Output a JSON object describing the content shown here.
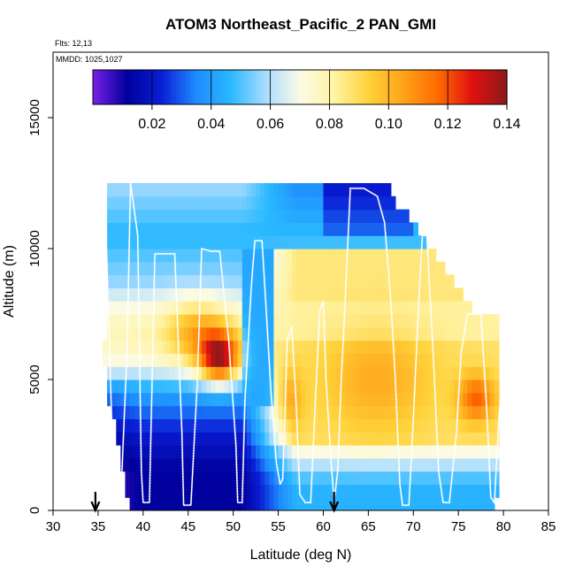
{
  "chart_data": {
    "type": "heatmap",
    "title": "ATOM3 Northeast_Pacific_2 PAN_GMI",
    "flights_text": "Flts: 12,13",
    "mmdd_text": "MMDD: 1025,1027",
    "xlabel": "Latitude (deg N)",
    "ylabel": "Altitude (m)",
    "xlim": [
      30,
      85
    ],
    "ylim": [
      0,
      17500
    ],
    "x_ticks": [
      30,
      35,
      40,
      45,
      50,
      55,
      60,
      65,
      70,
      75,
      80,
      85
    ],
    "y_ticks": [
      0,
      5000,
      10000,
      15000
    ],
    "colorbar": {
      "min": 0.0,
      "max": 0.14,
      "ticks": [
        0.02,
        0.04,
        0.06,
        0.08,
        0.1,
        0.12,
        0.14
      ],
      "tick_labels": [
        "0.02",
        "0.04",
        "0.06",
        "0.08",
        "0.10",
        "0.12",
        "0.14"
      ],
      "colors": [
        "#7a1fe8",
        "#00009c",
        "#0a1fd6",
        "#1f8cff",
        "#29b8ff",
        "#a8dcff",
        "#fbfbe6",
        "#fff3a3",
        "#ffd23a",
        "#ffa31a",
        "#ff6a00",
        "#e01010",
        "#8b1a1a"
      ]
    },
    "arrows_latitude": [
      34.7,
      61.2
    ],
    "grid": {
      "lat_start": 35,
      "lat_step": 0.5,
      "alt_step": 500,
      "top": [
        5500,
        6500,
        12500,
        12500,
        12500,
        12500,
        12500,
        12500,
        12500,
        12500,
        12500,
        12500,
        12500,
        12500,
        12500,
        12500,
        12500,
        12500,
        12500,
        12500,
        12500,
        12500,
        12500,
        12500,
        12500,
        12500,
        12500,
        12500,
        12500,
        12500,
        12500,
        12500,
        12500,
        12500,
        12500,
        12500,
        12500,
        12500,
        12500,
        12500,
        12500,
        12500,
        12500,
        12500,
        12500,
        12500,
        12500,
        12500,
        12500,
        12500,
        12500,
        12500,
        12500,
        12500,
        12500,
        12500,
        12500,
        12500,
        12500,
        12500,
        12500,
        12500,
        12500,
        12500,
        12500,
        12000,
        11500,
        11500,
        11500,
        11000,
        11000,
        10500,
        10500,
        10000,
        10000,
        9500,
        9500,
        9000,
        9000,
        8500,
        8500,
        8000,
        8000,
        7500,
        7500,
        7500,
        7500,
        7500,
        7500
      ],
      "bottom": [
        6000,
        5500,
        4000,
        3500,
        2500,
        1500,
        500,
        0,
        0,
        0,
        0,
        0,
        0,
        0,
        0,
        0,
        0,
        0,
        0,
        0,
        0,
        0,
        0,
        0,
        0,
        0,
        0,
        0,
        0,
        0,
        0,
        0,
        0,
        0,
        0,
        0,
        0,
        0,
        0,
        0,
        0,
        0,
        0,
        0,
        0,
        0,
        0,
        0,
        0,
        0,
        0,
        0,
        0,
        0,
        0,
        0,
        0,
        0,
        0,
        0,
        0,
        0,
        0,
        0,
        0,
        0,
        0,
        0,
        0,
        0,
        0,
        0,
        0,
        0,
        0,
        0,
        0,
        0,
        0,
        0,
        0,
        0,
        0,
        0,
        0,
        0,
        0,
        0,
        500,
        2000
      ],
      "blobs": [
        {
          "lat": 48.5,
          "alt": 5800,
          "slat": 2.2,
          "salt": 1000,
          "amp": 0.06
        },
        {
          "lat": 46.0,
          "alt": 6800,
          "slat": 3.5,
          "salt": 1300,
          "amp": 0.025
        },
        {
          "lat": 77.0,
          "alt": 4300,
          "slat": 2.0,
          "salt": 900,
          "amp": 0.03
        },
        {
          "lat": 66.0,
          "alt": 5000,
          "slat": 6.0,
          "salt": 2000,
          "amp": 0.015
        },
        {
          "lat": 56.0,
          "alt": 4200,
          "slat": 1.5,
          "salt": 1200,
          "amp": 0.02
        }
      ]
    },
    "flight_track": [
      [
        35.0,
        6500
      ],
      [
        35.3,
        12500
      ],
      [
        35.8,
        11500
      ],
      [
        36.5,
        3500
      ],
      [
        37.0,
        300
      ],
      [
        37.5,
        300
      ],
      [
        38.2,
        6000
      ],
      [
        38.6,
        12500
      ],
      [
        39.4,
        10500
      ],
      [
        39.8,
        1500
      ],
      [
        40.0,
        300
      ],
      [
        40.7,
        300
      ],
      [
        41.3,
        9800
      ],
      [
        42.2,
        9800
      ],
      [
        43.5,
        9800
      ],
      [
        44.3,
        3000
      ],
      [
        44.5,
        200
      ],
      [
        45.3,
        200
      ],
      [
        46.0,
        4800
      ],
      [
        46.5,
        10000
      ],
      [
        47.5,
        9900
      ],
      [
        48.5,
        9900
      ],
      [
        49.5,
        6500
      ],
      [
        50.3,
        2500
      ],
      [
        50.5,
        300
      ],
      [
        51.0,
        300
      ],
      [
        51.3,
        4200
      ],
      [
        52.0,
        8500
      ],
      [
        52.4,
        10300
      ],
      [
        53.2,
        10300
      ],
      [
        53.6,
        8000
      ],
      [
        54.2,
        4500
      ],
      [
        54.8,
        1800
      ],
      [
        55.2,
        1000
      ],
      [
        55.5,
        1200
      ],
      [
        56.0,
        6500
      ],
      [
        56.5,
        7000
      ],
      [
        57.0,
        4000
      ],
      [
        57.4,
        600
      ],
      [
        58.0,
        300
      ],
      [
        58.6,
        300
      ],
      [
        59.1,
        4000
      ],
      [
        59.6,
        7600
      ],
      [
        60.0,
        8000
      ],
      [
        60.3,
        5000
      ],
      [
        60.8,
        2200
      ],
      [
        61.2,
        300
      ],
      [
        61.6,
        1500
      ],
      [
        62.0,
        5000
      ],
      [
        62.5,
        8500
      ],
      [
        63.0,
        12300
      ],
      [
        64.5,
        12300
      ],
      [
        66.0,
        12000
      ],
      [
        66.8,
        11000
      ],
      [
        67.5,
        8000
      ],
      [
        68.0,
        5000
      ],
      [
        68.5,
        1000
      ],
      [
        68.8,
        200
      ],
      [
        69.5,
        200
      ],
      [
        70.0,
        3500
      ],
      [
        70.6,
        8000
      ],
      [
        71.0,
        10500
      ],
      [
        71.5,
        10500
      ],
      [
        72.2,
        6000
      ],
      [
        72.8,
        1500
      ],
      [
        73.3,
        300
      ],
      [
        74.0,
        300
      ],
      [
        74.8,
        3000
      ],
      [
        75.3,
        6000
      ],
      [
        76.0,
        7500
      ],
      [
        77.5,
        7500
      ],
      [
        78.2,
        3500
      ],
      [
        78.6,
        500
      ],
      [
        79.0,
        300
      ],
      [
        79.5,
        3500
      ],
      [
        80.0,
        6000
      ]
    ]
  }
}
